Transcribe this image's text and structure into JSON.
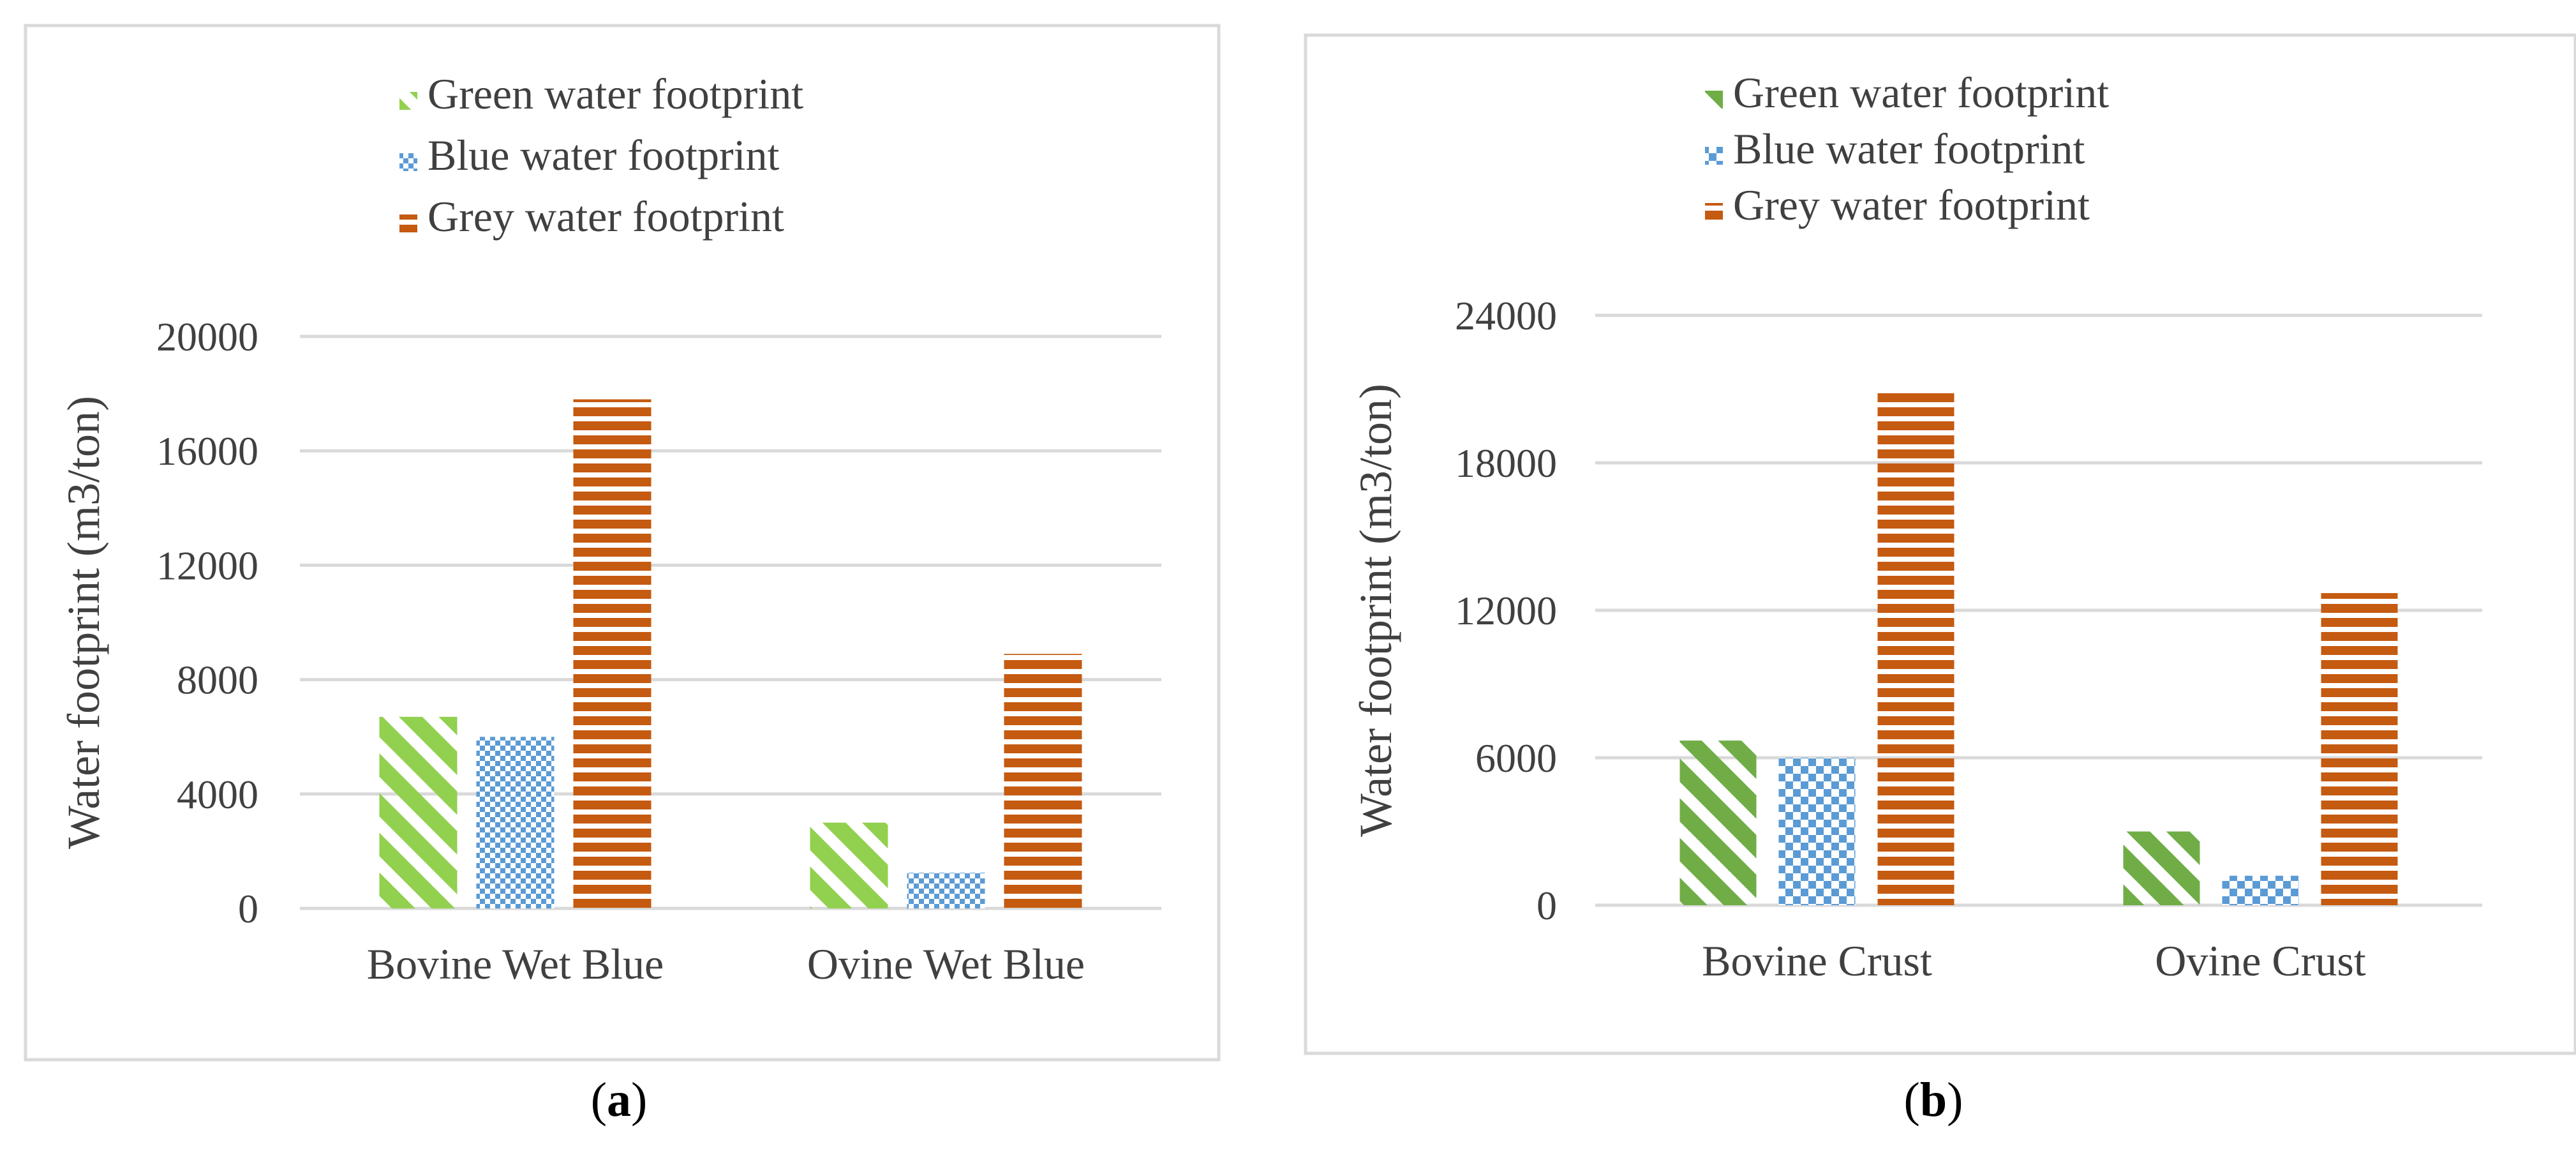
{
  "chart_data": [
    {
      "type": "bar",
      "panel_label": "a",
      "categories": [
        "Bovine Wet Blue",
        "Ovine Wet Blue"
      ],
      "series": [
        {
          "name": "Green water footprint",
          "values": [
            6700,
            3000
          ],
          "color": "#92d050",
          "pattern": "diagonal-stripes"
        },
        {
          "name": "Blue water footprint",
          "values": [
            6000,
            1250
          ],
          "color": "#5b9bd5",
          "pattern": "checkerboard"
        },
        {
          "name": "Grey water footprint",
          "values": [
            17800,
            8900
          ],
          "color": "#c55a11",
          "pattern": "horizontal-stripes"
        }
      ],
      "yticks": [
        "0",
        "4000",
        "8000",
        "12000",
        "16000",
        "20000"
      ],
      "ylim": [
        0,
        20000
      ],
      "ylabel": "Water footprint (m3/ton)",
      "xlabel": "",
      "grid": true,
      "legend_position": "top"
    },
    {
      "type": "bar",
      "panel_label": "b",
      "categories": [
        "Bovine Crust",
        "Ovine Crust"
      ],
      "series": [
        {
          "name": "Green water footprint",
          "values": [
            6700,
            3000
          ],
          "color": "#70ad47",
          "pattern": "diagonal-stripes"
        },
        {
          "name": "Blue water footprint",
          "values": [
            6000,
            1200
          ],
          "color": "#5b9bd5",
          "pattern": "dots"
        },
        {
          "name": "Grey water footprint",
          "values": [
            21000,
            12700
          ],
          "color": "#c55a11",
          "pattern": "horizontal-stripes"
        }
      ],
      "yticks": [
        "0",
        "6000",
        "12000",
        "18000",
        "24000"
      ],
      "ylim": [
        0,
        24000
      ],
      "ylabel": "Water footprint (m3/ton)",
      "xlabel": "",
      "grid": true,
      "legend_position": "top"
    }
  ]
}
